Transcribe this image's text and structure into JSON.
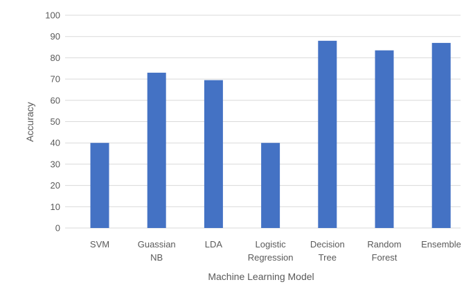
{
  "chart_data": {
    "type": "bar",
    "title": "",
    "xlabel": "Machine Learning Model",
    "ylabel": "Accuracy",
    "categories": [
      [
        "SVM"
      ],
      [
        "Guassian",
        "NB"
      ],
      [
        "LDA"
      ],
      [
        "Logistic",
        "Regression"
      ],
      [
        "Decision",
        "Tree"
      ],
      [
        "Random",
        "Forest"
      ],
      [
        "Ensemble"
      ]
    ],
    "values": [
      40,
      73,
      69.5,
      40,
      88,
      83.5,
      87
    ],
    "ylim": [
      0,
      100
    ],
    "yticks": [
      0,
      10,
      20,
      30,
      40,
      50,
      60,
      70,
      80,
      90,
      100
    ],
    "grid": true,
    "legend": "none",
    "colors": {
      "bar": "#4472C4",
      "grid": "#D9D9D9",
      "text": "#595959"
    }
  }
}
